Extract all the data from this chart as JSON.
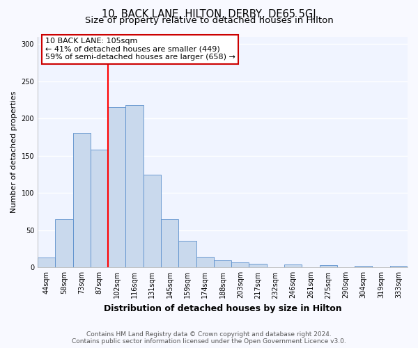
{
  "title": "10, BACK LANE, HILTON, DERBY, DE65 5GJ",
  "subtitle": "Size of property relative to detached houses in Hilton",
  "xlabel": "Distribution of detached houses by size in Hilton",
  "ylabel": "Number of detached properties",
  "bar_labels": [
    "44sqm",
    "58sqm",
    "73sqm",
    "87sqm",
    "102sqm",
    "116sqm",
    "131sqm",
    "145sqm",
    "159sqm",
    "174sqm",
    "188sqm",
    "203sqm",
    "217sqm",
    "232sqm",
    "246sqm",
    "261sqm",
    "275sqm",
    "290sqm",
    "304sqm",
    "319sqm",
    "333sqm"
  ],
  "bar_values": [
    13,
    65,
    181,
    158,
    215,
    218,
    125,
    65,
    36,
    14,
    10,
    7,
    5,
    0,
    4,
    0,
    3,
    0,
    2,
    0,
    2
  ],
  "bar_color": "#c9d9ed",
  "bar_edgecolor": "#5b8fcc",
  "vline_color": "red",
  "vline_bar_index": 4,
  "ylim": [
    0,
    310
  ],
  "yticks": [
    0,
    50,
    100,
    150,
    200,
    250,
    300
  ],
  "annotation_title": "10 BACK LANE: 105sqm",
  "annotation_line1": "← 41% of detached houses are smaller (449)",
  "annotation_line2": "59% of semi-detached houses are larger (658) →",
  "annotation_box_facecolor": "#ffffff",
  "annotation_box_edgecolor": "#cc0000",
  "footer1": "Contains HM Land Registry data © Crown copyright and database right 2024.",
  "footer2": "Contains public sector information licensed under the Open Government Licence v3.0.",
  "fig_facecolor": "#f8f9ff",
  "ax_facecolor": "#f0f4ff",
  "grid_color": "#ffffff",
  "title_fontsize": 10.5,
  "subtitle_fontsize": 9.5,
  "xlabel_fontsize": 9,
  "ylabel_fontsize": 8,
  "tick_fontsize": 7,
  "annotation_fontsize": 8,
  "footer_fontsize": 6.5
}
